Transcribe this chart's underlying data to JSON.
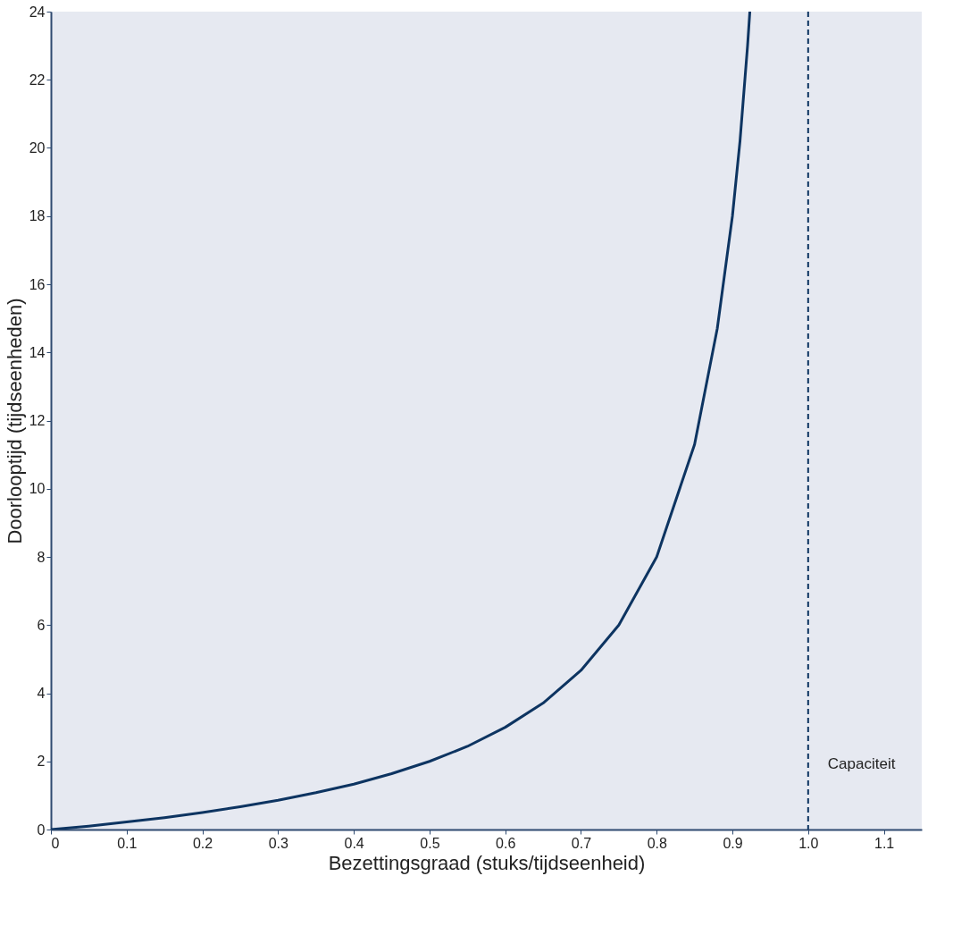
{
  "chart_data": {
    "type": "line",
    "xlabel": "Bezettingsgraad (stuks/tijdseenheid)",
    "ylabel": "Doorlooptijd (tijdseenheden)",
    "x": [
      0,
      0.05,
      0.1,
      0.15,
      0.2,
      0.25,
      0.3,
      0.35,
      0.4,
      0.45,
      0.5,
      0.55,
      0.6,
      0.65,
      0.7,
      0.75,
      0.8,
      0.85,
      0.88,
      0.9,
      0.91,
      0.92,
      0.923
    ],
    "series": [
      {
        "color": "#0d3461",
        "values": [
          0,
          0.1,
          0.22,
          0.35,
          0.5,
          0.67,
          0.86,
          1.08,
          1.33,
          1.64,
          2,
          2.44,
          3,
          3.71,
          4.67,
          6,
          8,
          11.3,
          14.7,
          18,
          20.2,
          23,
          24
        ]
      }
    ],
    "xlim": [
      0,
      1.15
    ],
    "ylim": [
      0,
      24
    ],
    "xticks": [
      0,
      0.1,
      0.2,
      0.3,
      0.4,
      0.5,
      0.6,
      0.7,
      0.8,
      0.9,
      {
        "value": 1,
        "label": "1.0"
      },
      1.1
    ],
    "yticks": [
      0,
      2,
      4,
      6,
      8,
      10,
      12,
      14,
      16,
      18,
      20,
      22,
      24
    ],
    "ref_lines": [
      {
        "axis": "x",
        "value": 1,
        "label": "Capaciteit",
        "color": "#0d3461",
        "line_style": "dashed"
      }
    ],
    "grid": false,
    "marker": "none",
    "line_style": "solid"
  }
}
